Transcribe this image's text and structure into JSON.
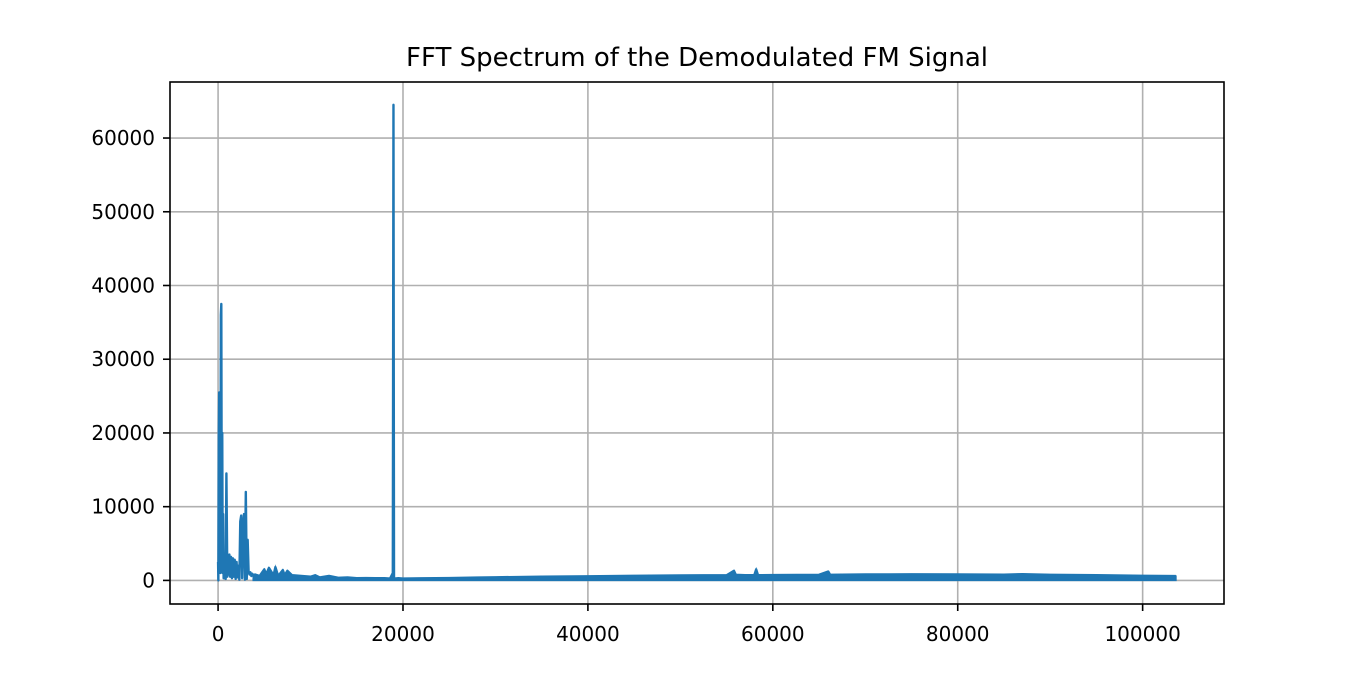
{
  "chart_data": {
    "type": "line",
    "title": "FFT Spectrum of the Demodulated FM Signal",
    "xlabel": "",
    "ylabel": "",
    "xlim": [
      -5200,
      108800
    ],
    "ylim": [
      -3200,
      67600
    ],
    "grid": true,
    "x_ticks": [
      0,
      20000,
      40000,
      60000,
      80000,
      100000
    ],
    "x_tick_labels": [
      "0",
      "20000",
      "40000",
      "60000",
      "80000",
      "100000"
    ],
    "y_ticks": [
      0,
      10000,
      20000,
      30000,
      40000,
      50000,
      60000
    ],
    "y_tick_labels": [
      "0",
      "10000",
      "20000",
      "30000",
      "40000",
      "50000",
      "60000"
    ],
    "series": [
      {
        "color": "#1f77b4",
        "x": [
          0,
          30,
          80,
          120,
          160,
          200,
          250,
          300,
          350,
          400,
          450,
          500,
          550,
          600,
          650,
          700,
          760,
          820,
          900,
          1000,
          1080,
          1150,
          1220,
          1300,
          1400,
          1500,
          1600,
          1700,
          1800,
          1900,
          2000,
          2100,
          2200,
          2300,
          2400,
          2500,
          2600,
          2700,
          2800,
          2900,
          3000,
          3100,
          3200,
          3300,
          3400,
          3500,
          3600,
          3700,
          3800,
          4000,
          4500,
          5000,
          5200,
          5500,
          6000,
          6200,
          6500,
          7000,
          7200,
          7500,
          8000,
          9000,
          10000,
          10500,
          11000,
          12000,
          13000,
          14000,
          15000,
          16000,
          17000,
          18000,
          18600,
          18900,
          18970,
          19000,
          19030,
          19100,
          19500,
          20000,
          22000,
          25000,
          28000,
          30000,
          35000,
          40000,
          45000,
          50000,
          55000,
          55800,
          56000,
          57000,
          58000,
          58200,
          58400,
          60000,
          65000,
          66000,
          66200,
          70000,
          75000,
          80000,
          85000,
          87000,
          90000,
          95000,
          100000,
          103600
        ],
        "values": [
          2500,
          0,
          20000,
          25500,
          5000,
          15000,
          1000,
          36000,
          37500,
          4000,
          20000,
          1000,
          9000,
          300,
          3000,
          600,
          2500,
          200,
          14500,
          500,
          3000,
          800,
          3500,
          500,
          3200,
          300,
          3000,
          500,
          2800,
          200,
          2500,
          400,
          2000,
          100,
          8000,
          8800,
          300,
          7500,
          9000,
          100,
          12000,
          200,
          5500,
          1200,
          800,
          1100,
          600,
          900,
          700,
          800,
          600,
          1500,
          800,
          1700,
          700,
          1800,
          600,
          1400,
          700,
          1300,
          700,
          600,
          500,
          700,
          400,
          600,
          350,
          400,
          300,
          320,
          300,
          300,
          250,
          1000,
          64500,
          30000,
          200,
          250,
          300,
          250,
          280,
          320,
          380,
          420,
          500,
          560,
          620,
          680,
          700,
          1300,
          750,
          700,
          720,
          1500,
          700,
          720,
          760,
          1200,
          750,
          800,
          820,
          800,
          780,
          850,
          760,
          700,
          620,
          580
        ]
      }
    ]
  }
}
